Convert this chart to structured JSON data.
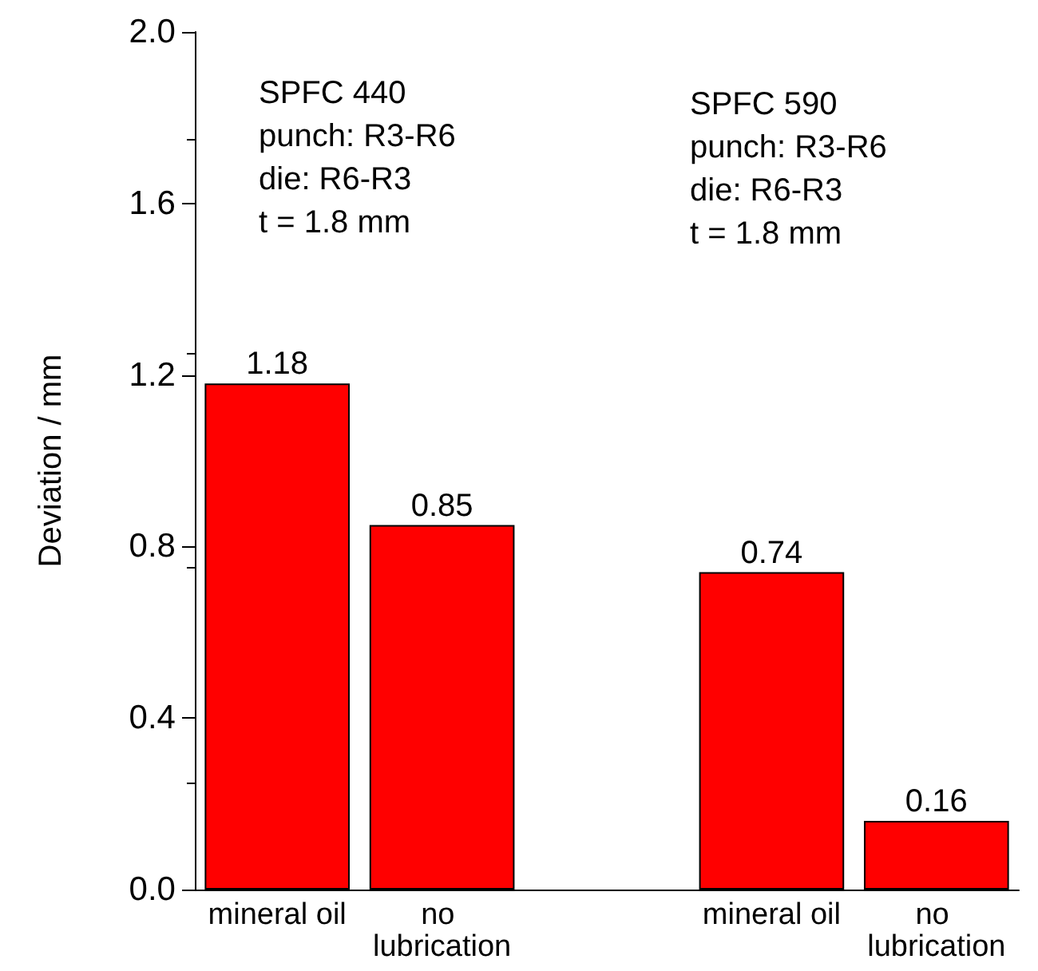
{
  "chart_data": {
    "type": "bar",
    "ylabel": "Deviation / mm",
    "categories": [
      "mineral oil",
      "no lubrication",
      null,
      "mineral oil",
      "no lubrication"
    ],
    "values": [
      1.18,
      0.85,
      null,
      0.74,
      0.16
    ],
    "color": "#ff0000",
    "data_labels": true,
    "ylim": [
      0,
      2
    ],
    "yticks": [
      {
        "value": 0,
        "label": "0.0"
      },
      {
        "value": 0.4,
        "label": "0.4"
      },
      {
        "value": 0.8,
        "label": "0.8"
      },
      {
        "value": 1.2,
        "label": "1.2"
      },
      {
        "value": 1.6,
        "label": "1.6"
      },
      {
        "value": 2,
        "label": "2.0"
      }
    ],
    "annotations": [
      "SPFC 440\npunch: R3-R6\ndie: R6-R3\nt = 1.8 mm",
      "SPFC 590\npunch: R3-R6\ndie: R6-R3\nt = 1.8 mm"
    ],
    "grid": false
  }
}
